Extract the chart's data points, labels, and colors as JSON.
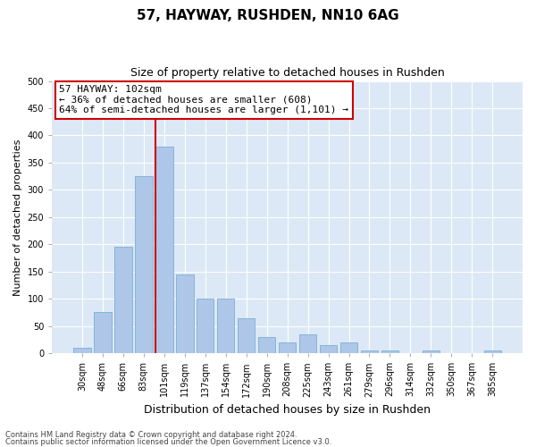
{
  "title1": "57, HAYWAY, RUSHDEN, NN10 6AG",
  "title2": "Size of property relative to detached houses in Rushden",
  "xlabel": "Distribution of detached houses by size in Rushden",
  "ylabel": "Number of detached properties",
  "categories": [
    "30sqm",
    "48sqm",
    "66sqm",
    "83sqm",
    "101sqm",
    "119sqm",
    "137sqm",
    "154sqm",
    "172sqm",
    "190sqm",
    "208sqm",
    "225sqm",
    "243sqm",
    "261sqm",
    "279sqm",
    "296sqm",
    "314sqm",
    "332sqm",
    "350sqm",
    "367sqm",
    "385sqm"
  ],
  "values": [
    10,
    75,
    195,
    325,
    380,
    145,
    100,
    100,
    65,
    30,
    20,
    35,
    15,
    20,
    5,
    5,
    0,
    5,
    0,
    0,
    5
  ],
  "bar_color": "#aec6e8",
  "bar_edge_color": "#7aafd4",
  "vline_color": "#cc0000",
  "vline_x_index": 4,
  "ylim": [
    0,
    500
  ],
  "yticks": [
    0,
    50,
    100,
    150,
    200,
    250,
    300,
    350,
    400,
    450,
    500
  ],
  "annotation_text": "57 HAYWAY: 102sqm\n← 36% of detached houses are smaller (608)\n64% of semi-detached houses are larger (1,101) →",
  "annotation_box_color": "#ffffff",
  "annotation_box_edge": "#cc0000",
  "footer1": "Contains HM Land Registry data © Crown copyright and database right 2024.",
  "footer2": "Contains public sector information licensed under the Open Government Licence v3.0.",
  "fig_bg_color": "#ffffff",
  "plot_bg_color": "#dce8f5",
  "grid_color": "#ffffff",
  "title1_fontsize": 11,
  "title2_fontsize": 9,
  "ylabel_fontsize": 8,
  "xlabel_fontsize": 9,
  "tick_fontsize": 7,
  "footer_fontsize": 6,
  "ann_fontsize": 8
}
